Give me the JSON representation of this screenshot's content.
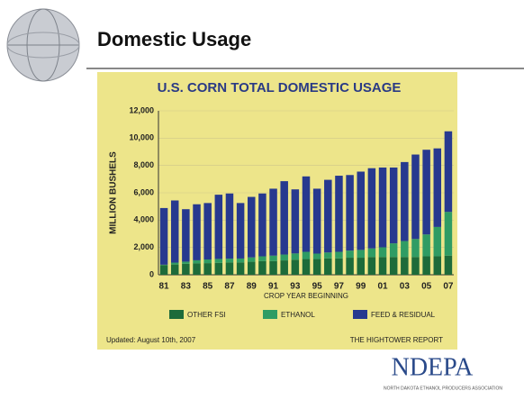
{
  "header": {
    "title": "Domestic Usage"
  },
  "chart_data": {
    "type": "stacked-bar",
    "title": "U.S. CORN TOTAL DOMESTIC USAGE",
    "x_label": "CROP YEAR BEGINNING",
    "y_label": "MILLION BUSHELS",
    "categories": [
      "81",
      null,
      "83",
      null,
      "85",
      null,
      "87",
      null,
      "89",
      null,
      "91",
      null,
      "93",
      null,
      "95",
      null,
      "97",
      null,
      "99",
      null,
      "01",
      null,
      "03",
      null,
      "05",
      null,
      "07"
    ],
    "series": [
      {
        "name": "OTHER FSI",
        "color": "#1d6b3a",
        "values": [
          700,
          750,
          800,
          830,
          850,
          870,
          900,
          900,
          950,
          1000,
          1000,
          1050,
          1100,
          1150,
          1150,
          1200,
          1200,
          1250,
          1250,
          1300,
          1300,
          1300,
          1300,
          1300,
          1350,
          1350,
          1400
        ]
      },
      {
        "name": "ETHANOL",
        "color": "#2f9c64",
        "values": [
          35,
          140,
          160,
          230,
          270,
          290,
          280,
          290,
          320,
          350,
          400,
          430,
          460,
          530,
          400,
          430,
          480,
          520,
          570,
          630,
          710,
          1000,
          1170,
          1320,
          1600,
          2150,
          3200
        ]
      },
      {
        "name": "FEED & RESIDUAL",
        "color": "#27398f",
        "values": [
          4150,
          4550,
          3840,
          4100,
          4130,
          4700,
          4770,
          4060,
          4430,
          4600,
          4900,
          5370,
          4690,
          5520,
          4750,
          5320,
          5570,
          5530,
          5730,
          5870,
          5840,
          5550,
          5780,
          6180,
          6200,
          5750,
          5900
        ]
      }
    ],
    "ylim": [
      0,
      12000
    ],
    "yticks": [
      0,
      {
        "value": 2000,
        "label": "2,000"
      },
      {
        "value": 4000,
        "label": "4,000"
      },
      {
        "value": 6000,
        "label": "6,000"
      },
      {
        "value": 8000,
        "label": "8,000"
      },
      {
        "value": 10000,
        "label": "10,000"
      },
      {
        "value": 12000,
        "label": "12,000"
      }
    ],
    "grid": true,
    "legend": "bottom",
    "updated": "Updated: August 10th, 2007",
    "source": "THE HIGHTOWER REPORT"
  },
  "logo": {
    "name": "NDEPA",
    "tagline": "NORTH DAKOTA ETHANOL PRODUCERS ASSOCIATION"
  }
}
